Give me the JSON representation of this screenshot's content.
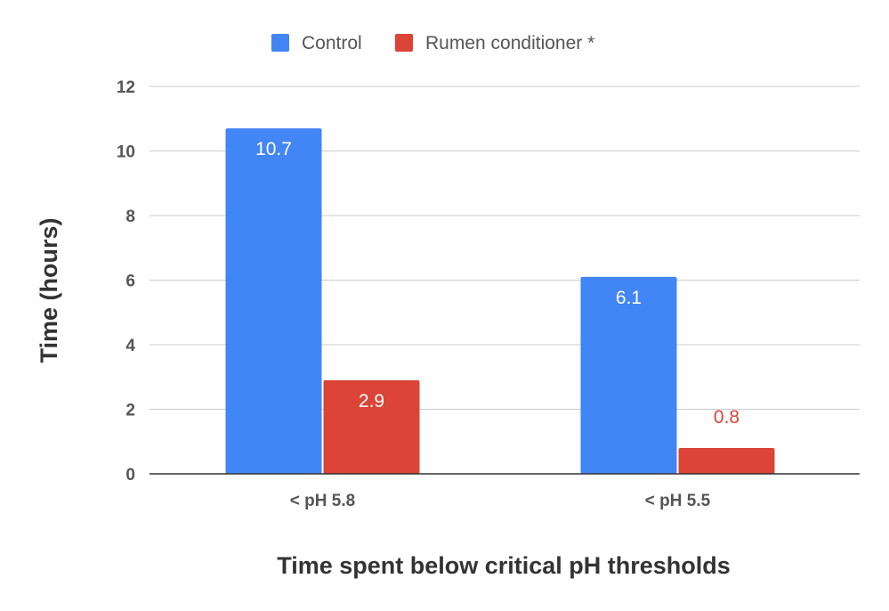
{
  "chart_data": {
    "type": "bar",
    "categories": [
      "< pH 5.8",
      "< pH 5.5"
    ],
    "series": [
      {
        "name": "Control",
        "color": "#4285f4",
        "values": [
          10.7,
          6.1
        ],
        "labels": [
          "10.7",
          "6.1"
        ]
      },
      {
        "name": "Rumen conditioner *",
        "color": "#db4437",
        "values": [
          2.9,
          0.8
        ],
        "labels": [
          "2.9",
          "0.8"
        ]
      }
    ],
    "xlabel": "Time spent below critical pH thresholds",
    "ylabel": "Time (hours)",
    "ylim": [
      0,
      12
    ],
    "yticks": [
      0,
      2,
      4,
      6,
      8,
      10,
      12
    ],
    "grid": true,
    "legend_position": "top-center"
  }
}
